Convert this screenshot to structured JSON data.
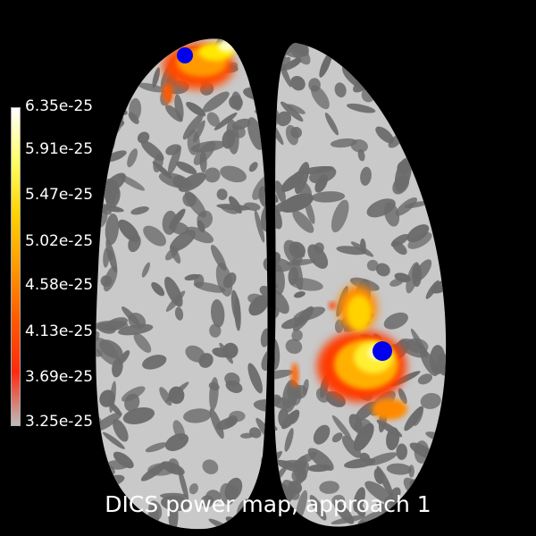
{
  "title": "DICS power map, approach 1",
  "colorbar": {
    "ticks": [
      "6.35e-25",
      "5.91e-25",
      "5.47e-25",
      "5.02e-25",
      "4.58e-25",
      "4.13e-25",
      "3.69e-25",
      "3.25e-25"
    ],
    "colors": [
      "#ffffff",
      "#ffff66",
      "#ffd200",
      "#ff9a00",
      "#ff5a00",
      "#ff2a10",
      "#bcbcbc"
    ]
  },
  "markers": {
    "color": "#0000ee",
    "count": 2
  },
  "cortex": {
    "light_color": "#c9c9c9",
    "dark_color": "#6b6b6b"
  }
}
